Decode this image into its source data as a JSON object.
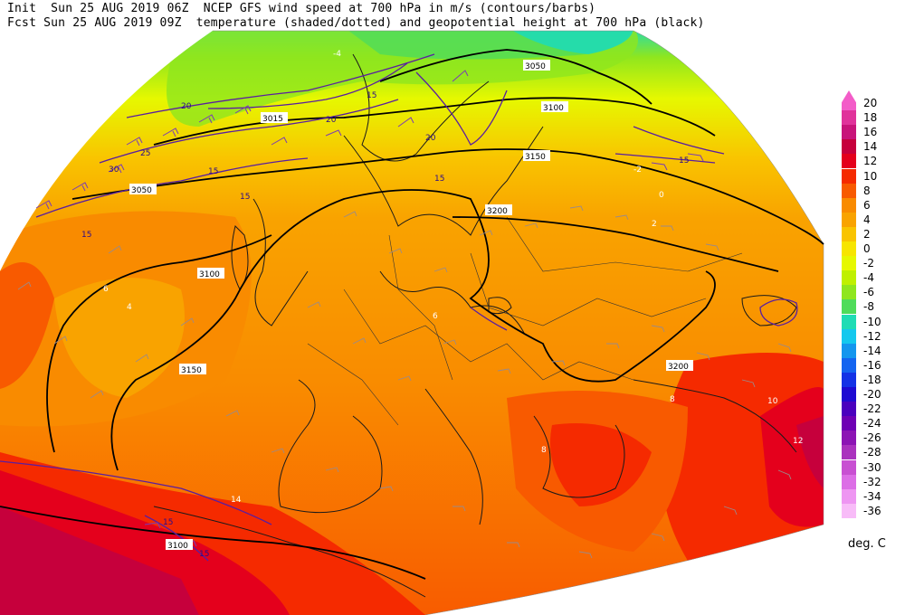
{
  "header": {
    "line1": "Init  Sun 25 AUG 2019 06Z  NCEP GFS wind speed at 700 hPa in m/s (contours/barbs)",
    "line2": "Fcst Sun 25 AUG 2019 09Z  temperature (shaded/dotted) and geopotential height at 700 hPa (black)"
  },
  "colorbar": {
    "units": "deg. C",
    "levels": [
      {
        "label": "20",
        "color": "#f35cc8"
      },
      {
        "label": "18",
        "color": "#e0339b"
      },
      {
        "label": "16",
        "color": "#c8147a"
      },
      {
        "label": "14",
        "color": "#c6003c"
      },
      {
        "label": "12",
        "color": "#e4001c"
      },
      {
        "label": "10",
        "color": "#f52a00"
      },
      {
        "label": "8",
        "color": "#f85a00"
      },
      {
        "label": "6",
        "color": "#f98b00"
      },
      {
        "label": "4",
        "color": "#f9a300"
      },
      {
        "label": "2",
        "color": "#f9c400"
      },
      {
        "label": "0",
        "color": "#f7e500"
      },
      {
        "label": "-2",
        "color": "#e6f800"
      },
      {
        "label": "-4",
        "color": "#bff000"
      },
      {
        "label": "-6",
        "color": "#8fe61e"
      },
      {
        "label": "-8",
        "color": "#4fdc5a"
      },
      {
        "label": "-10",
        "color": "#1fdcb4"
      },
      {
        "label": "-12",
        "color": "#14c8ee"
      },
      {
        "label": "-14",
        "color": "#1496ee"
      },
      {
        "label": "-16",
        "color": "#1464f0"
      },
      {
        "label": "-18",
        "color": "#1432e6"
      },
      {
        "label": "-20",
        "color": "#1e0ad2"
      },
      {
        "label": "-22",
        "color": "#4a00be"
      },
      {
        "label": "-24",
        "color": "#6e00b4"
      },
      {
        "label": "-26",
        "color": "#8c14b4"
      },
      {
        "label": "-28",
        "color": "#aa32be"
      },
      {
        "label": "-30",
        "color": "#c850d2"
      },
      {
        "label": "-32",
        "color": "#dc6ee6"
      },
      {
        "label": "-34",
        "color": "#ee96f2"
      },
      {
        "label": "-36",
        "color": "#f8bcf8"
      }
    ]
  },
  "height_labels": [
    "3050",
    "3100",
    "3150",
    "3200",
    "3100",
    "3150",
    "3200",
    "3100",
    "3050",
    "3015"
  ],
  "wind_labels": [
    "15",
    "20",
    "25",
    "30",
    "15",
    "15",
    "20",
    "15",
    "15",
    "15",
    "15",
    "20",
    "15"
  ],
  "temp_labels": [
    "4",
    "6",
    "-4",
    "-2",
    "0",
    "2",
    "8",
    "10",
    "12",
    "14",
    "6",
    "8"
  ]
}
